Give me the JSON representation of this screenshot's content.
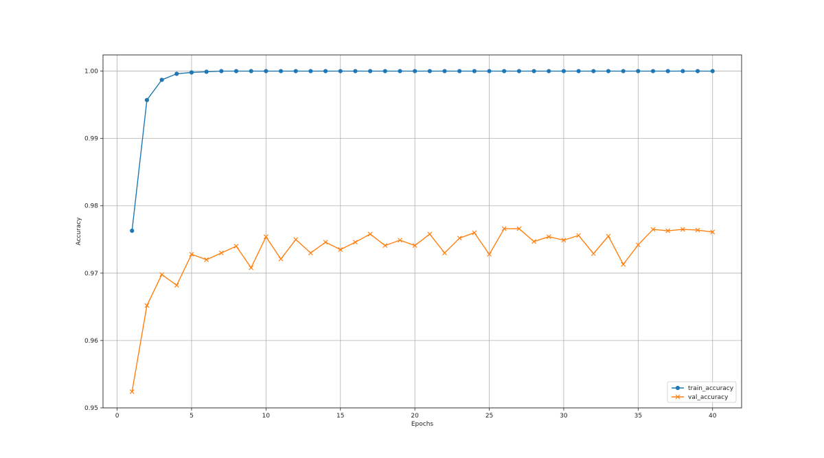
{
  "chart_data": {
    "type": "line",
    "title": "",
    "xlabel": "Epochs",
    "ylabel": "Accuracy",
    "xlim": [
      -0.95,
      41.95
    ],
    "ylim": [
      0.95,
      1.0024
    ],
    "xticks": [
      0,
      5,
      10,
      15,
      20,
      25,
      30,
      35,
      40
    ],
    "xtick_labels": [
      "0",
      "5",
      "10",
      "15",
      "20",
      "25",
      "30",
      "35",
      "40"
    ],
    "yticks": [
      0.95,
      0.96,
      0.97,
      0.98,
      0.99,
      1.0
    ],
    "ytick_labels": [
      "0.95",
      "0.96",
      "0.97",
      "0.98",
      "0.99",
      "1.00"
    ],
    "grid": true,
    "legend": "lower-right",
    "x": [
      1,
      2,
      3,
      4,
      5,
      6,
      7,
      8,
      9,
      10,
      11,
      12,
      13,
      14,
      15,
      16,
      17,
      18,
      19,
      20,
      21,
      22,
      23,
      24,
      25,
      26,
      27,
      28,
      29,
      30,
      31,
      32,
      33,
      34,
      35,
      36,
      37,
      38,
      39,
      40
    ],
    "series": [
      {
        "name": "train_accuracy",
        "color": "#1f77b4",
        "marker": "circle",
        "values": [
          0.9763,
          0.9957,
          0.9987,
          0.9996,
          0.9998,
          0.9999,
          1.0,
          1.0,
          1.0,
          1.0,
          1.0,
          1.0,
          1.0,
          1.0,
          1.0,
          1.0,
          1.0,
          1.0,
          1.0,
          1.0,
          1.0,
          1.0,
          1.0,
          1.0,
          1.0,
          1.0,
          1.0,
          1.0,
          1.0,
          1.0,
          1.0,
          1.0,
          1.0,
          1.0,
          1.0,
          1.0,
          1.0,
          1.0,
          1.0,
          1.0
        ]
      },
      {
        "name": "val_accuracy",
        "color": "#ff7f0e",
        "marker": "x",
        "values": [
          0.9524,
          0.9652,
          0.9698,
          0.9682,
          0.9728,
          0.972,
          0.973,
          0.974,
          0.9708,
          0.9754,
          0.9721,
          0.975,
          0.973,
          0.9746,
          0.9735,
          0.9746,
          0.9758,
          0.9741,
          0.9749,
          0.9741,
          0.9758,
          0.973,
          0.9752,
          0.976,
          0.9728,
          0.9766,
          0.9766,
          0.9747,
          0.9754,
          0.9749,
          0.9756,
          0.9729,
          0.9755,
          0.9713,
          0.9742,
          0.9765,
          0.9763,
          0.9765,
          0.9764,
          0.9761
        ]
      }
    ]
  }
}
